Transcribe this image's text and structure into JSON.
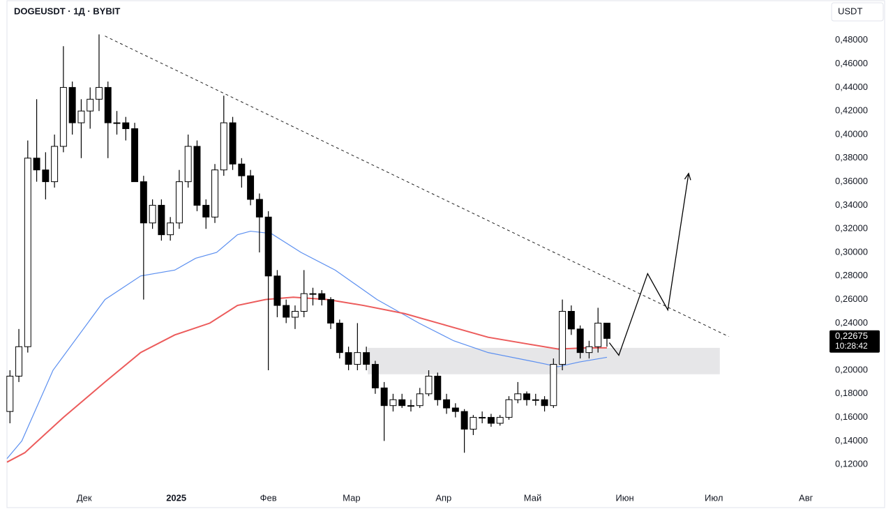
{
  "chart_data": {
    "type": "candlestick",
    "title": "DOGEUSDT · 1Д · BYBIT",
    "currency": "USDT",
    "xlim": [
      -26,
      250
    ],
    "ylim": [
      0.1,
      0.5
    ],
    "grid": false,
    "xticks": [
      {
        "value": 0,
        "label": "Дек"
      },
      {
        "value": 31,
        "label": "2025"
      },
      {
        "value": 62,
        "label": "Фев"
      },
      {
        "value": 90,
        "label": "Мар"
      },
      {
        "value": 121,
        "label": "Апр"
      },
      {
        "value": 151,
        "label": "Май"
      },
      {
        "value": 182,
        "label": "Июн"
      },
      {
        "value": 212,
        "label": "Июл"
      },
      {
        "value": 243,
        "label": "Авг"
      }
    ],
    "yticks": [
      {
        "value": 0.12,
        "label": "0,12000"
      },
      {
        "value": 0.14,
        "label": "0,14000"
      },
      {
        "value": 0.16,
        "label": "0,16000"
      },
      {
        "value": 0.18,
        "label": "0,18000"
      },
      {
        "value": 0.2,
        "label": "0,20000"
      },
      {
        "value": 0.22,
        "label": "0,22000"
      },
      {
        "value": 0.24,
        "label": "0,24000"
      },
      {
        "value": 0.26,
        "label": "0,26000"
      },
      {
        "value": 0.28,
        "label": "0,28000"
      },
      {
        "value": 0.3,
        "label": "0,30000"
      },
      {
        "value": 0.32,
        "label": "0,32000"
      },
      {
        "value": 0.34,
        "label": "0,34000"
      },
      {
        "value": 0.36,
        "label": "0,36000"
      },
      {
        "value": 0.38,
        "label": "0,38000"
      },
      {
        "value": 0.4,
        "label": "0,40000"
      },
      {
        "value": 0.42,
        "label": "0,42000"
      },
      {
        "value": 0.44,
        "label": "0,44000"
      },
      {
        "value": 0.46,
        "label": "0,46000"
      },
      {
        "value": 0.48,
        "label": "0,48000"
      }
    ],
    "candles": {
      "up_color": "#ffffff",
      "down_color": "#000000",
      "border_color": "#000000",
      "x": [
        -25,
        -22,
        -19,
        -16,
        -13,
        -10,
        -7,
        -4,
        -1,
        2,
        5,
        8,
        11,
        14,
        17,
        20,
        23,
        26,
        29,
        32,
        35,
        38,
        41,
        44,
        47,
        50,
        53,
        56,
        59,
        62,
        65,
        68,
        71,
        74,
        77,
        80,
        83,
        86,
        89,
        92,
        95,
        98,
        101,
        104,
        107,
        110,
        113,
        116,
        119,
        122,
        125,
        128,
        131,
        134,
        137,
        140,
        143,
        146,
        149,
        152,
        155,
        158,
        161,
        164,
        167,
        170,
        173,
        176
      ],
      "open": [
        0.165,
        0.195,
        0.22,
        0.38,
        0.37,
        0.36,
        0.39,
        0.44,
        0.41,
        0.42,
        0.43,
        0.44,
        0.41,
        0.41,
        0.405,
        0.36,
        0.325,
        0.34,
        0.315,
        0.325,
        0.36,
        0.39,
        0.34,
        0.33,
        0.37,
        0.41,
        0.375,
        0.365,
        0.345,
        0.33,
        0.28,
        0.255,
        0.245,
        0.25,
        0.265,
        0.265,
        0.26,
        0.24,
        0.215,
        0.205,
        0.215,
        0.205,
        0.185,
        0.17,
        0.175,
        0.17,
        0.17,
        0.18,
        0.195,
        0.175,
        0.168,
        0.165,
        0.15,
        0.16,
        0.16,
        0.155,
        0.16,
        0.175,
        0.18,
        0.175,
        0.175,
        0.17,
        0.205,
        0.25,
        0.235,
        0.215,
        0.22,
        0.24
      ],
      "high": [
        0.2,
        0.235,
        0.395,
        0.43,
        0.385,
        0.4,
        0.475,
        0.445,
        0.43,
        0.44,
        0.485,
        0.445,
        0.42,
        0.415,
        0.41,
        0.365,
        0.345,
        0.345,
        0.33,
        0.37,
        0.4,
        0.395,
        0.345,
        0.375,
        0.433,
        0.415,
        0.38,
        0.37,
        0.35,
        0.335,
        0.285,
        0.26,
        0.255,
        0.285,
        0.27,
        0.268,
        0.262,
        0.243,
        0.22,
        0.24,
        0.22,
        0.208,
        0.19,
        0.18,
        0.18,
        0.175,
        0.185,
        0.2,
        0.198,
        0.18,
        0.172,
        0.167,
        0.162,
        0.165,
        0.163,
        0.162,
        0.178,
        0.19,
        0.182,
        0.18,
        0.178,
        0.21,
        0.26,
        0.255,
        0.238,
        0.225,
        0.253,
        0.24
      ],
      "low": [
        0.155,
        0.19,
        0.215,
        0.36,
        0.345,
        0.355,
        0.385,
        0.4,
        0.38,
        0.405,
        0.42,
        0.38,
        0.4,
        0.395,
        0.36,
        0.26,
        0.32,
        0.31,
        0.31,
        0.32,
        0.355,
        0.335,
        0.32,
        0.325,
        0.365,
        0.37,
        0.355,
        0.34,
        0.3,
        0.2,
        0.245,
        0.24,
        0.235,
        0.245,
        0.255,
        0.255,
        0.235,
        0.21,
        0.2,
        0.2,
        0.2,
        0.18,
        0.14,
        0.165,
        0.168,
        0.165,
        0.168,
        0.178,
        0.17,
        0.163,
        0.16,
        0.13,
        0.145,
        0.155,
        0.152,
        0.153,
        0.158,
        0.172,
        0.17,
        0.17,
        0.165,
        0.168,
        0.2,
        0.23,
        0.21,
        0.21,
        0.215,
        0.22
      ],
      "close": [
        0.195,
        0.22,
        0.38,
        0.37,
        0.36,
        0.39,
        0.44,
        0.41,
        0.42,
        0.43,
        0.44,
        0.41,
        0.41,
        0.405,
        0.36,
        0.325,
        0.34,
        0.315,
        0.325,
        0.36,
        0.39,
        0.34,
        0.33,
        0.37,
        0.41,
        0.375,
        0.365,
        0.345,
        0.33,
        0.28,
        0.255,
        0.245,
        0.25,
        0.265,
        0.265,
        0.26,
        0.24,
        0.215,
        0.205,
        0.215,
        0.205,
        0.185,
        0.17,
        0.175,
        0.17,
        0.17,
        0.18,
        0.195,
        0.175,
        0.168,
        0.165,
        0.15,
        0.16,
        0.16,
        0.155,
        0.16,
        0.175,
        0.18,
        0.175,
        0.175,
        0.17,
        0.205,
        0.25,
        0.235,
        0.215,
        0.22,
        0.24,
        0.227
      ]
    },
    "series": [
      {
        "color": "#5b8ff0",
        "x": [
          -26,
          -21,
          -10.5,
          7,
          19,
          30.5,
          37.5,
          44.6,
          51.6,
          56,
          63,
          73,
          84.5,
          98.6,
          112.7,
          124.4,
          136,
          150,
          159.6,
          166.7,
          176
        ],
        "values": [
          0.125,
          0.14,
          0.2,
          0.26,
          0.28,
          0.285,
          0.295,
          0.3,
          0.315,
          0.318,
          0.316,
          0.3,
          0.285,
          0.26,
          0.24,
          0.225,
          0.215,
          0.208,
          0.203,
          0.207,
          0.211
        ]
      },
      {
        "color": "#ec5b5b",
        "x": [
          -26,
          -20,
          -7,
          7,
          19,
          30.5,
          42.3,
          51.6,
          61,
          70.4,
          82,
          94,
          108,
          122,
          136,
          150,
          159.6,
          169,
          176
        ],
        "values": [
          0.122,
          0.13,
          0.16,
          0.19,
          0.215,
          0.23,
          0.24,
          0.255,
          0.26,
          0.262,
          0.26,
          0.255,
          0.248,
          0.238,
          0.228,
          0.222,
          0.218,
          0.219,
          0.219
        ]
      }
    ],
    "trendline": {
      "x": [
        7,
        217
      ],
      "y": [
        0.4836,
        0.2286
      ]
    },
    "projection": {
      "x": [
        176.8,
        180,
        189.7,
        196.5,
        203.5
      ],
      "y": [
        0.2234,
        0.2127,
        0.282,
        0.2512,
        0.367
      ]
    },
    "zone": {
      "x": [
        95.5,
        214
      ],
      "y": [
        0.1966,
        0.219
      ],
      "color": "#e6e6e8"
    },
    "last_price": {
      "value": 0.22675,
      "label": "0,22675"
    },
    "countdown": "10:28:42"
  }
}
